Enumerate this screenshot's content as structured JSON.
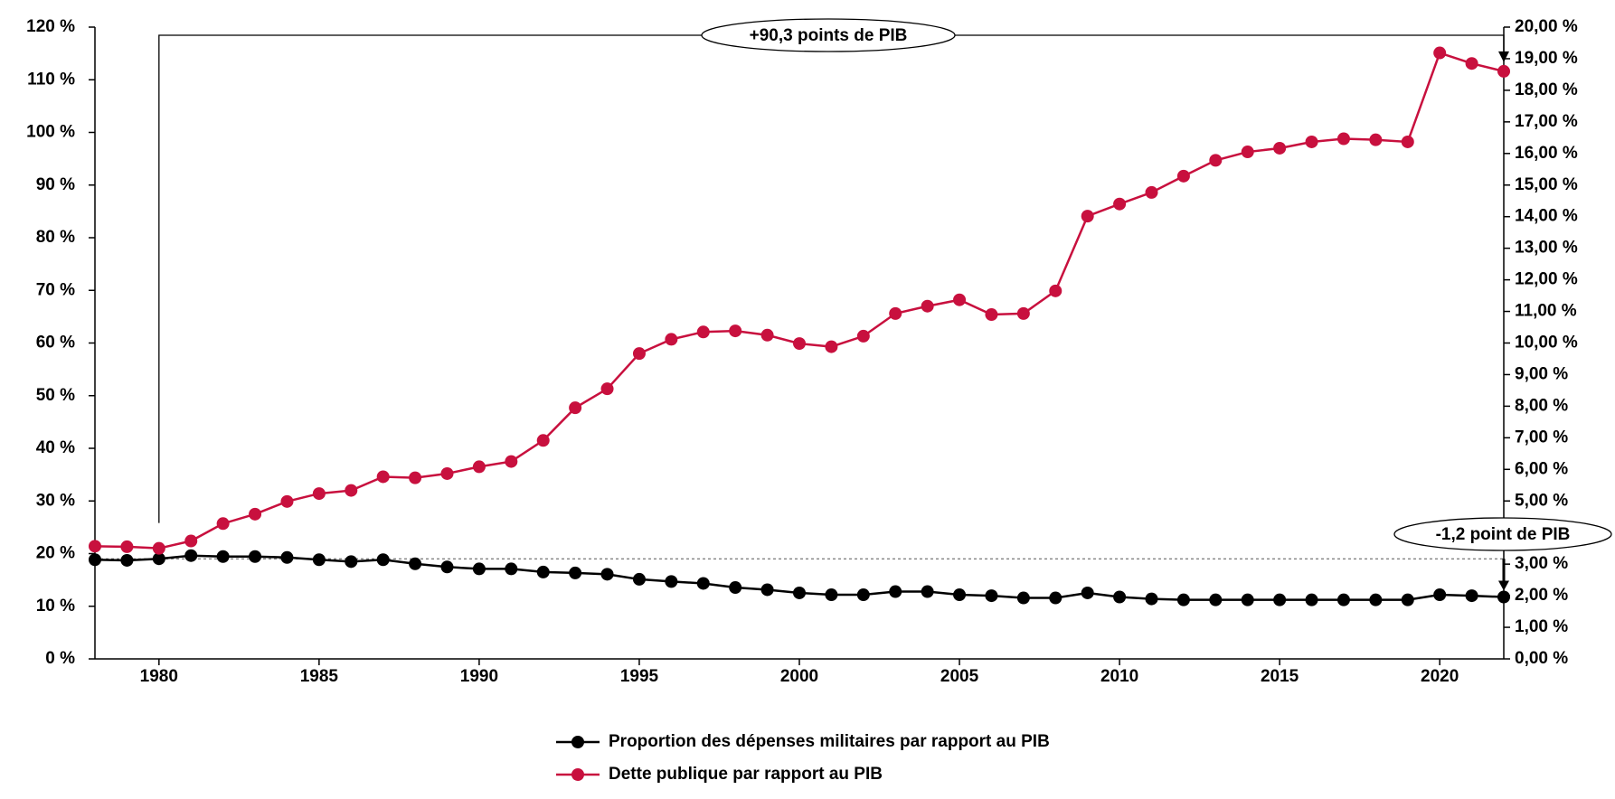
{
  "chart_data": {
    "type": "line",
    "annotations": [
      "+90,3 points de PIB",
      "-1,2 point de PIB"
    ],
    "x": [
      1978,
      1979,
      1980,
      1981,
      1982,
      1983,
      1984,
      1985,
      1986,
      1987,
      1988,
      1989,
      1990,
      1991,
      1992,
      1993,
      1994,
      1995,
      1996,
      1997,
      1998,
      1999,
      2000,
      2001,
      2002,
      2003,
      2004,
      2005,
      2006,
      2007,
      2008,
      2009,
      2010,
      2011,
      2012,
      2013,
      2014,
      2015,
      2016,
      2017,
      2018,
      2019,
      2020,
      2021,
      2022
    ],
    "xlim": [
      1978,
      2022
    ],
    "xticks": [
      1980,
      1985,
      1990,
      1995,
      2000,
      2005,
      2010,
      2015,
      2020
    ],
    "ylim": [
      0,
      120
    ],
    "yticks": [
      {
        "value": 0,
        "label": "0 %"
      },
      {
        "value": 10,
        "label": "10 %"
      },
      {
        "value": 20,
        "label": "20 %"
      },
      {
        "value": 30,
        "label": "30 %"
      },
      {
        "value": 40,
        "label": "40 %"
      },
      {
        "value": 50,
        "label": "50 %"
      },
      {
        "value": 60,
        "label": "60 %"
      },
      {
        "value": 70,
        "label": "70 %"
      },
      {
        "value": 80,
        "label": "80 %"
      },
      {
        "value": 90,
        "label": "90 %"
      },
      {
        "value": 100,
        "label": "100 %"
      },
      {
        "value": 110,
        "label": "110 %"
      },
      {
        "value": 120,
        "label": "120 %"
      }
    ],
    "y2lim": [
      0,
      20
    ],
    "y2ticks": [
      {
        "value": 0,
        "label": "0,00 %"
      },
      {
        "value": 1,
        "label": "1,00 %"
      },
      {
        "value": 2,
        "label": "2,00 %"
      },
      {
        "value": 3,
        "label": "3,00 %"
      },
      {
        "value": 4,
        "label": "4,00 %"
      },
      {
        "value": 5,
        "label": "5,00 %"
      },
      {
        "value": 6,
        "label": "6,00 %"
      },
      {
        "value": 7,
        "label": "7,00 %"
      },
      {
        "value": 8,
        "label": "8,00 %"
      },
      {
        "value": 9,
        "label": "9,00 %"
      },
      {
        "value": 10,
        "label": "10,00 %"
      },
      {
        "value": 11,
        "label": "11,00 %"
      },
      {
        "value": 12,
        "label": "12,00 %"
      },
      {
        "value": 13,
        "label": "13,00 %"
      },
      {
        "value": 14,
        "label": "14,00 %"
      },
      {
        "value": 15,
        "label": "15,00 %"
      },
      {
        "value": 16,
        "label": "16,00 %"
      },
      {
        "value": 17,
        "label": "17,00 %"
      },
      {
        "value": 18,
        "label": "18,00 %"
      },
      {
        "value": 19,
        "label": "19,00 %"
      },
      {
        "value": 20,
        "label": "20,00 %"
      }
    ],
    "series": [
      {
        "name": "Proportion des dépenses militaires par rapport au PIB",
        "color": "#000000",
        "axis": "y2",
        "values": [
          3.14,
          3.12,
          3.17,
          3.27,
          3.24,
          3.24,
          3.21,
          3.14,
          3.08,
          3.14,
          3.01,
          2.91,
          2.85,
          2.85,
          2.75,
          2.72,
          2.68,
          2.52,
          2.45,
          2.39,
          2.26,
          2.19,
          2.09,
          2.03,
          2.03,
          2.13,
          2.13,
          2.03,
          2.0,
          1.93,
          1.93,
          2.09,
          1.96,
          1.9,
          1.87,
          1.87,
          1.87,
          1.87,
          1.87,
          1.87,
          1.87,
          1.87,
          2.03,
          2.0,
          1.96
        ]
      },
      {
        "name": "Dette publique par rapport au PIB",
        "color": "#c8103e",
        "values": [
          21.4,
          21.3,
          21.0,
          22.4,
          25.7,
          27.5,
          29.9,
          31.4,
          32.0,
          34.6,
          34.4,
          35.2,
          36.5,
          37.5,
          41.5,
          47.7,
          51.3,
          58.0,
          60.7,
          62.1,
          62.3,
          61.5,
          59.9,
          59.3,
          61.3,
          65.6,
          67.0,
          68.2,
          65.4,
          65.6,
          69.9,
          84.1,
          86.4,
          88.6,
          91.7,
          94.7,
          96.3,
          97.0,
          98.2,
          98.8,
          98.6,
          98.2,
          115.1,
          113.1,
          111.6
        ]
      }
    ]
  }
}
